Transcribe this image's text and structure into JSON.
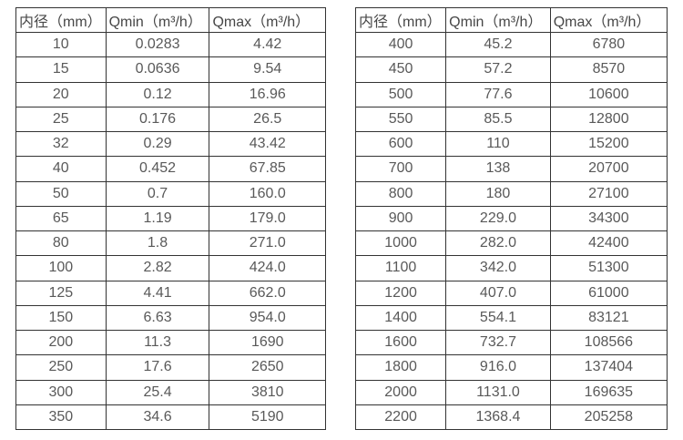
{
  "page": {
    "background_color": "#ffffff",
    "border_color": "#333333",
    "header_text_color": "#474747",
    "cell_text_color": "#595959"
  },
  "tables": [
    {
      "name": "flow-table-small-diameters",
      "headers": [
        "内径（mm）",
        "Qmin（m³/h）",
        "Qmax（m³/h）"
      ],
      "rows": [
        [
          "10",
          "0.0283",
          "4.42"
        ],
        [
          "15",
          "0.0636",
          "9.54"
        ],
        [
          "20",
          "0.12",
          "16.96"
        ],
        [
          "25",
          "0.176",
          "26.5"
        ],
        [
          "32",
          "0.29",
          "43.42"
        ],
        [
          "40",
          "0.452",
          "67.85"
        ],
        [
          "50",
          "0.7",
          "160.0"
        ],
        [
          "65",
          "1.19",
          "179.0"
        ],
        [
          "80",
          "1.8",
          "271.0"
        ],
        [
          "100",
          "2.82",
          "424.0"
        ],
        [
          "125",
          "4.41",
          "662.0"
        ],
        [
          "150",
          "6.63",
          "954.0"
        ],
        [
          "200",
          "11.3",
          "1690"
        ],
        [
          "250",
          "17.6",
          "2650"
        ],
        [
          "300",
          "25.4",
          "3810"
        ],
        [
          "350",
          "34.6",
          "5190"
        ]
      ]
    },
    {
      "name": "flow-table-large-diameters",
      "headers": [
        "内径（mm）",
        "Qmin（m³/h）",
        "Qmax（m³/h）"
      ],
      "rows": [
        [
          "400",
          "45.2",
          "6780"
        ],
        [
          "450",
          "57.2",
          "8570"
        ],
        [
          "500",
          "77.6",
          "10600"
        ],
        [
          "550",
          "85.5",
          "12800"
        ],
        [
          "600",
          "110",
          "15200"
        ],
        [
          "700",
          "138",
          "20700"
        ],
        [
          "800",
          "180",
          "27100"
        ],
        [
          "900",
          "229.0",
          "34300"
        ],
        [
          "1000",
          "282.0",
          "42400"
        ],
        [
          "1100",
          "342.0",
          "51300"
        ],
        [
          "1200",
          "407.0",
          "61000"
        ],
        [
          "1400",
          "554.1",
          "83121"
        ],
        [
          "1600",
          "732.7",
          "108566"
        ],
        [
          "1800",
          "916.0",
          "137404"
        ],
        [
          "2000",
          "1131.0",
          "169635"
        ],
        [
          "2200",
          "1368.4",
          "205258"
        ]
      ]
    }
  ]
}
